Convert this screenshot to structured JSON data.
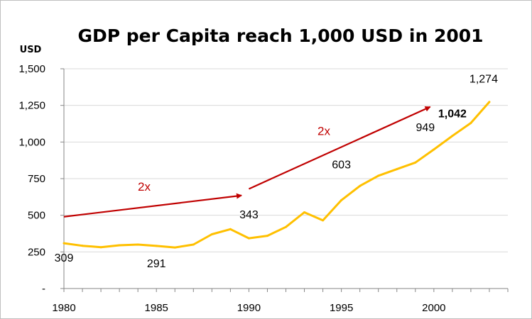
{
  "chart_data": {
    "type": "line",
    "title": "GDP per Capita reach 1,000 USD in 2001",
    "ylabel": "USD",
    "xlabel": "",
    "ylim": [
      0,
      1500
    ],
    "xlim": [
      1980,
      2004
    ],
    "yticks": [
      {
        "value": 0,
        "label": "-"
      },
      {
        "value": 250,
        "label": "250"
      },
      {
        "value": 500,
        "label": "500"
      },
      {
        "value": 750,
        "label": "750"
      },
      {
        "value": 1000,
        "label": "1,000"
      },
      {
        "value": 1250,
        "label": "1,250"
      },
      {
        "value": 1500,
        "label": "1,500"
      }
    ],
    "xticks": [
      {
        "value": 1980,
        "label": "1980"
      },
      {
        "value": 1985,
        "label": "1985"
      },
      {
        "value": 1990,
        "label": "1990"
      },
      {
        "value": 1995,
        "label": "1995"
      },
      {
        "value": 2000,
        "label": "2000"
      }
    ],
    "grid": true,
    "legend": "none",
    "series": [
      {
        "color": "#ffc000",
        "x": [
          1980,
          1981,
          1982,
          1983,
          1984,
          1985,
          1986,
          1987,
          1988,
          1989,
          1990,
          1991,
          1992,
          1993,
          1994,
          1995,
          1996,
          1997,
          1998,
          1999,
          2000,
          2001,
          2002,
          2003
        ],
        "values": [
          309,
          292,
          282,
          295,
          300,
          291,
          280,
          300,
          370,
          405,
          343,
          360,
          420,
          520,
          465,
          603,
          700,
          770,
          815,
          860,
          949,
          1042,
          1130,
          1274
        ]
      }
    ],
    "data_labels": [
      {
        "x": 1980,
        "text": "309",
        "bold": false
      },
      {
        "x": 1985,
        "text": "291",
        "bold": false
      },
      {
        "x": 1990,
        "text": "343",
        "bold": false
      },
      {
        "x": 1995,
        "text": "603",
        "bold": false
      },
      {
        "x": 2000,
        "text": "949",
        "bold": false
      },
      {
        "x": 2001,
        "text": "1,042",
        "bold": true
      },
      {
        "x": 2003,
        "text": "1,274",
        "bold": false
      }
    ],
    "annotations": [
      {
        "text": "2x",
        "color": "#c00000",
        "arrow_from": [
          1980,
          490
        ],
        "arrow_to": [
          1989.6,
          635
        ]
      },
      {
        "text": "2x",
        "color": "#c00000",
        "arrow_from": [
          1990,
          680
        ],
        "arrow_to": [
          1999.8,
          1240
        ]
      }
    ]
  }
}
